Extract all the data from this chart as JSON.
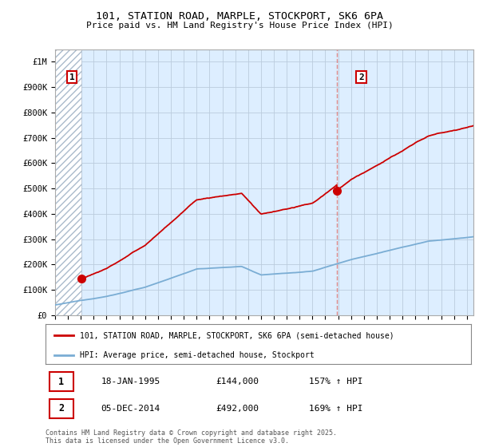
{
  "title1": "101, STATION ROAD, MARPLE, STOCKPORT, SK6 6PA",
  "title2": "Price paid vs. HM Land Registry's House Price Index (HPI)",
  "ylim": [
    0,
    1050000
  ],
  "yticks": [
    0,
    100000,
    200000,
    300000,
    400000,
    500000,
    600000,
    700000,
    800000,
    900000,
    1000000
  ],
  "ytick_labels": [
    "£0",
    "£100K",
    "£200K",
    "£300K",
    "£400K",
    "£500K",
    "£600K",
    "£700K",
    "£800K",
    "£900K",
    "£1M"
  ],
  "hpi_color": "#7aadd4",
  "sale_color": "#cc0000",
  "vline_color": "#dd8888",
  "sale1_date": 1995.05,
  "sale1_price": 144000,
  "sale2_date": 2014.92,
  "sale2_price": 492000,
  "legend_sale": "101, STATION ROAD, MARPLE, STOCKPORT, SK6 6PA (semi-detached house)",
  "legend_hpi": "HPI: Average price, semi-detached house, Stockport",
  "annotation1_date": "18-JAN-1995",
  "annotation1_price": "£144,000",
  "annotation1_hpi": "157% ↑ HPI",
  "annotation2_date": "05-DEC-2014",
  "annotation2_price": "£492,000",
  "annotation2_hpi": "169% ↑ HPI",
  "footer": "Contains HM Land Registry data © Crown copyright and database right 2025.\nThis data is licensed under the Open Government Licence v3.0.",
  "hatch_pattern": "////",
  "bg_color": "#ffffff",
  "plot_bg_color": "#ddeeff",
  "hatch_facecolor": "#ffffff",
  "hatch_edgecolor": "#aabbcc",
  "grid_color": "#bbccdd",
  "xmin": 1993,
  "xmax": 2025.5
}
